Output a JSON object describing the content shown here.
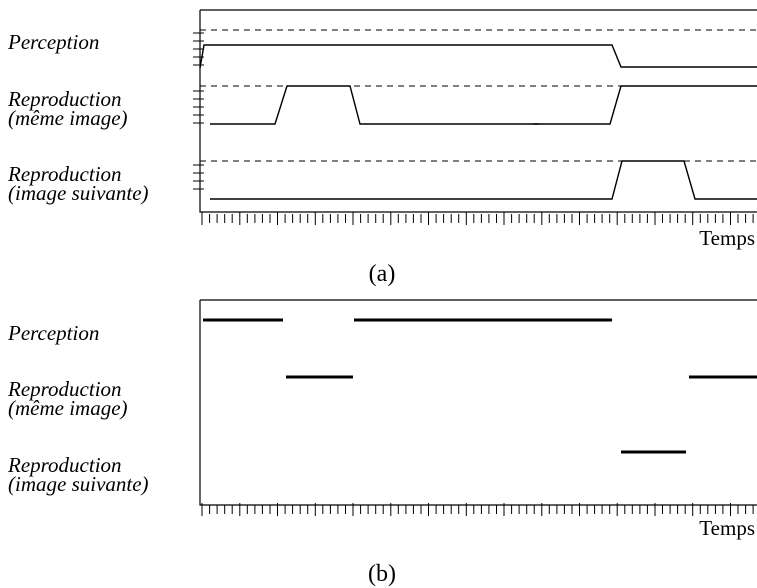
{
  "axis_label": "Temps",
  "panels": [
    {
      "caption": "(a)",
      "rows": [
        {
          "title": "Perception",
          "subtitle": ""
        },
        {
          "title": "Reproduction",
          "subtitle": "(même image)"
        },
        {
          "title": "Reproduction",
          "subtitle": "(image suivante)"
        }
      ]
    },
    {
      "caption": "(b)",
      "rows": [
        {
          "title": "Perception",
          "subtitle": ""
        },
        {
          "title": "Reproduction",
          "subtitle": "(même image)"
        },
        {
          "title": "Reproduction",
          "subtitle": "(image suivante)"
        }
      ]
    }
  ]
}
